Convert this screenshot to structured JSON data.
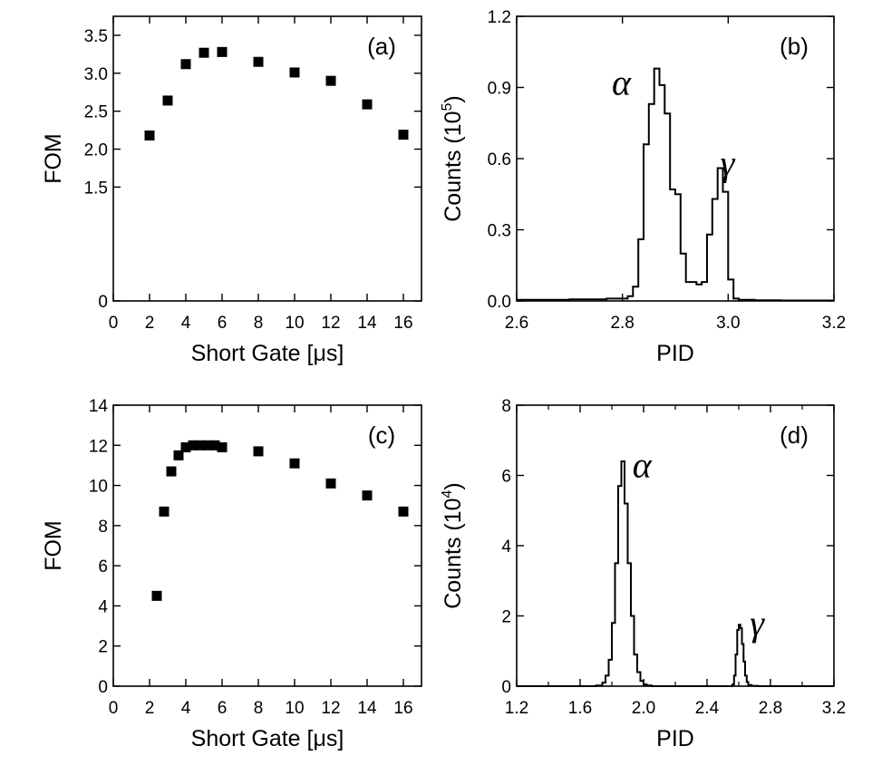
{
  "chart_data": [
    {
      "id": "a",
      "type": "scatter",
      "panel_label": "(a)",
      "xlabel": "Short Gate [μs]",
      "ylabel": "FOM",
      "xlim": [
        0,
        17
      ],
      "ylim": [
        0,
        3.75
      ],
      "xticks": [
        0,
        2,
        4,
        6,
        8,
        10,
        12,
        14,
        16
      ],
      "yticks": [
        0,
        1.5,
        2.0,
        2.5,
        3.0,
        3.5
      ],
      "ytick_labels": [
        "0",
        "1.5",
        "2.0",
        "2.5",
        "3.0",
        "3.5"
      ],
      "x": [
        2,
        3,
        4,
        5,
        6,
        8,
        10,
        12,
        14,
        16
      ],
      "y": [
        2.18,
        2.64,
        3.12,
        3.27,
        3.28,
        3.15,
        3.01,
        2.9,
        2.59,
        2.19
      ]
    },
    {
      "id": "b",
      "type": "line",
      "step": true,
      "panel_label": "(b)",
      "xlabel": "PID",
      "ylabel": "Counts (10",
      "ylabel_exp": "5",
      "ylabel_tail": ")",
      "xlim": [
        2.6,
        3.2
      ],
      "ylim": [
        0,
        1.2
      ],
      "xticks": [
        2.6,
        2.8,
        3.0,
        3.2
      ],
      "xtick_labels": [
        "2.6",
        "2.8",
        "3.0",
        "3.2"
      ],
      "yticks": [
        0.0,
        0.3,
        0.6,
        0.9,
        1.2
      ],
      "ytick_labels": [
        "0.0",
        "0.3",
        "0.6",
        "0.9",
        "1.2"
      ],
      "peak_labels": [
        {
          "text": "α",
          "x": 2.78,
          "y": 0.87
        },
        {
          "text": "γ",
          "x": 2.985,
          "y": 0.53
        }
      ],
      "x": [
        2.6,
        2.7,
        2.77,
        2.81,
        2.82,
        2.83,
        2.84,
        2.85,
        2.86,
        2.87,
        2.88,
        2.89,
        2.9,
        2.91,
        2.92,
        2.93,
        2.94,
        2.95,
        2.96,
        2.97,
        2.98,
        2.99,
        3.0,
        3.01,
        3.02,
        3.05,
        3.1,
        3.2
      ],
      "y": [
        0.005,
        0.007,
        0.01,
        0.02,
        0.06,
        0.26,
        0.66,
        0.83,
        0.98,
        0.91,
        0.79,
        0.47,
        0.45,
        0.2,
        0.08,
        0.08,
        0.07,
        0.08,
        0.28,
        0.43,
        0.56,
        0.46,
        0.09,
        0.01,
        0.005,
        0.003,
        0.002,
        0.002
      ]
    },
    {
      "id": "c",
      "type": "scatter",
      "panel_label": "(c)",
      "xlabel": "Short Gate [μs]",
      "ylabel": "FOM",
      "xlim": [
        0,
        17
      ],
      "ylim": [
        0,
        14
      ],
      "xticks": [
        0,
        2,
        4,
        6,
        8,
        10,
        12,
        14,
        16
      ],
      "yticks": [
        0,
        2,
        4,
        6,
        8,
        10,
        12,
        14
      ],
      "ytick_labels": [
        "0",
        "2",
        "4",
        "6",
        "8",
        "10",
        "12",
        "14"
      ],
      "x": [
        2.4,
        2.8,
        3.2,
        3.6,
        4.0,
        4.4,
        4.8,
        5.2,
        5.6,
        6.0,
        8,
        10,
        12,
        14,
        16
      ],
      "y": [
        4.5,
        8.7,
        10.7,
        11.5,
        11.9,
        12.0,
        12.0,
        12.0,
        12.0,
        11.9,
        11.7,
        11.1,
        10.1,
        9.5,
        8.7
      ]
    },
    {
      "id": "d",
      "type": "line",
      "step": true,
      "panel_label": "(d)",
      "xlabel": "PID",
      "ylabel": "Counts (10",
      "ylabel_exp": "4",
      "ylabel_tail": ")",
      "xlim": [
        1.2,
        3.2
      ],
      "ylim": [
        0,
        8
      ],
      "xticks": [
        1.2,
        1.6,
        2.0,
        2.4,
        2.8,
        3.2
      ],
      "xtick_labels": [
        "1.2",
        "1.6",
        "2.0",
        "2.4",
        "2.8",
        "3.2"
      ],
      "minor_xticks": [
        1.4,
        1.8,
        2.2,
        2.6,
        3.0
      ],
      "yticks": [
        0,
        2,
        4,
        6,
        8
      ],
      "ytick_labels": [
        "0",
        "2",
        "4",
        "6",
        "8"
      ],
      "peak_labels": [
        {
          "text": "α",
          "x": 1.93,
          "y": 5.95
        },
        {
          "text": "γ",
          "x": 2.67,
          "y": 1.45
        }
      ],
      "x": [
        1.2,
        1.7,
        1.74,
        1.76,
        1.78,
        1.8,
        1.82,
        1.84,
        1.86,
        1.88,
        1.9,
        1.92,
        1.94,
        1.96,
        1.98,
        2.0,
        2.02,
        2.05,
        2.5,
        2.56,
        2.57,
        2.58,
        2.59,
        2.6,
        2.61,
        2.62,
        2.63,
        2.64,
        2.65,
        2.66,
        2.68,
        2.72,
        3.2
      ],
      "y": [
        0.0,
        0.02,
        0.1,
        0.3,
        0.75,
        1.8,
        3.5,
        5.7,
        6.4,
        5.2,
        3.5,
        2.0,
        0.9,
        0.4,
        0.15,
        0.05,
        0.02,
        0.0,
        0.0,
        0.05,
        0.3,
        0.9,
        1.6,
        1.75,
        1.65,
        1.2,
        0.7,
        0.3,
        0.12,
        0.03,
        0.01,
        0.0,
        0.0
      ]
    }
  ]
}
